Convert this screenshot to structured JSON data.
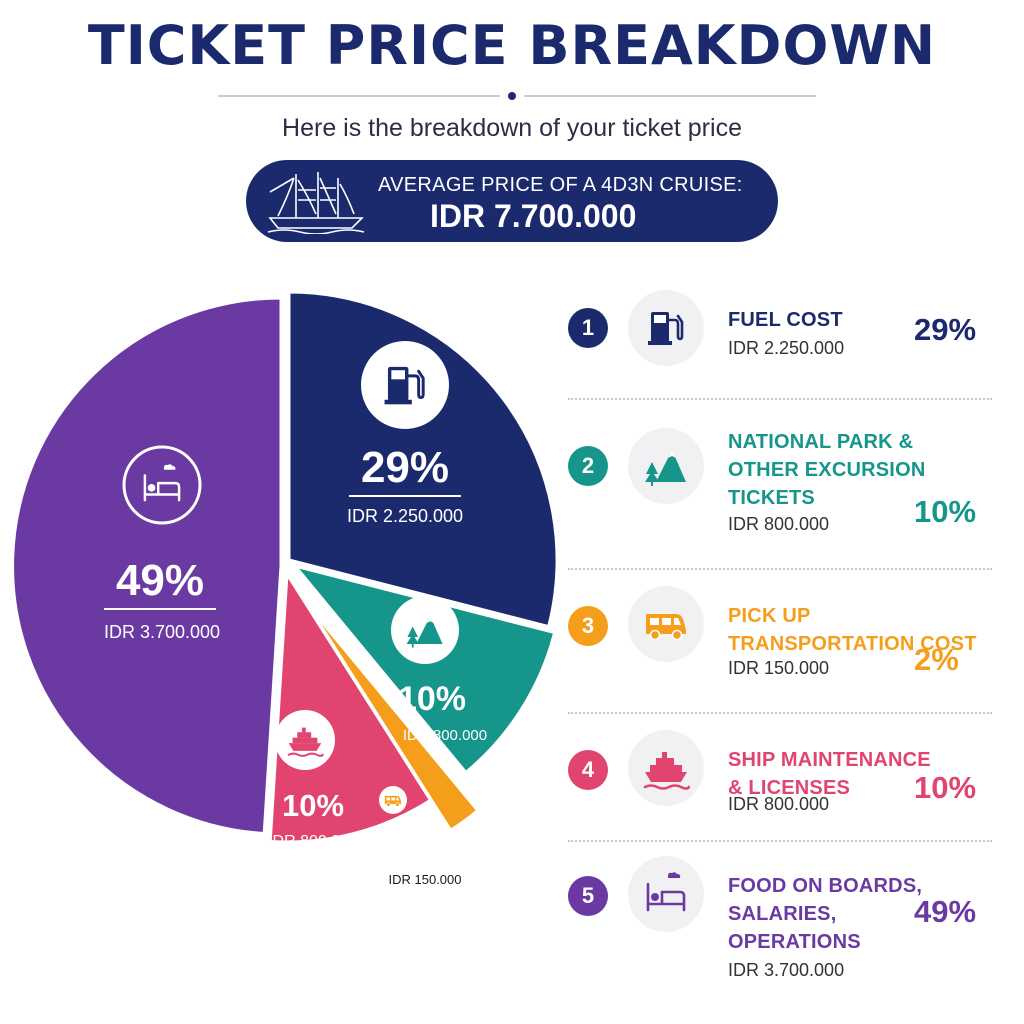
{
  "header": {
    "title": "TICKET PRICE BREAKDOWN",
    "subtitle": "Here is the breakdown of your ticket price"
  },
  "banner": {
    "label": "AVERAGE PRICE OF A 4D3N CRUISE:",
    "value": "IDR 7.700.000",
    "icon": "sailing-ship-icon"
  },
  "colors": {
    "navy": "#1a2a6c",
    "teal": "#16968b",
    "orange": "#f59e1b",
    "pink": "#e0446f",
    "purple": "#6a3aa2"
  },
  "chart_data": {
    "type": "pie",
    "title": "TICKET PRICE BREAKDOWN",
    "slices": [
      {
        "rank": "1",
        "label": "FUEL COST",
        "percent": 29,
        "percent_label": "29%",
        "amount": "IDR 2.250.000",
        "color": "#1a2a6c",
        "icon": "fuel-pump-icon"
      },
      {
        "rank": "2",
        "label": "NATIONAL PARK & OTHER EXCURSION TICKETS",
        "label_lines": [
          "NATIONAL PARK &",
          "OTHER EXCURSION",
          "TICKETS"
        ],
        "percent": 10,
        "percent_label": "10%",
        "amount": "IDR 800.000",
        "color": "#16968b",
        "icon": "mountain-tree-icon"
      },
      {
        "rank": "3",
        "label": "PICK UP TRANSPORTATION COST",
        "label_lines": [
          "PICK UP",
          "TRANSPORTATION COST"
        ],
        "percent": 2,
        "percent_label": "2%",
        "amount": "IDR 150.000",
        "color": "#f59e1b",
        "icon": "van-icon"
      },
      {
        "rank": "4",
        "label": "SHIP MAINTENANCE & LICENSES",
        "label_lines": [
          "SHIP MAINTENANCE",
          "& LICENSES"
        ],
        "percent": 10,
        "percent_label": "10%",
        "amount": "IDR 800.000",
        "color": "#e0446f",
        "icon": "ship-icon"
      },
      {
        "rank": "5",
        "label": "FOOD ON BOARDS, SALARIES, OPERATIONS",
        "label_lines": [
          "FOOD ON BOARDS,",
          "SALARIES,",
          "OPERATIONS"
        ],
        "percent": 49,
        "percent_label": "49%",
        "amount": "IDR 3.700.000",
        "color": "#6a3aa2",
        "icon": "bed-icon"
      }
    ]
  }
}
